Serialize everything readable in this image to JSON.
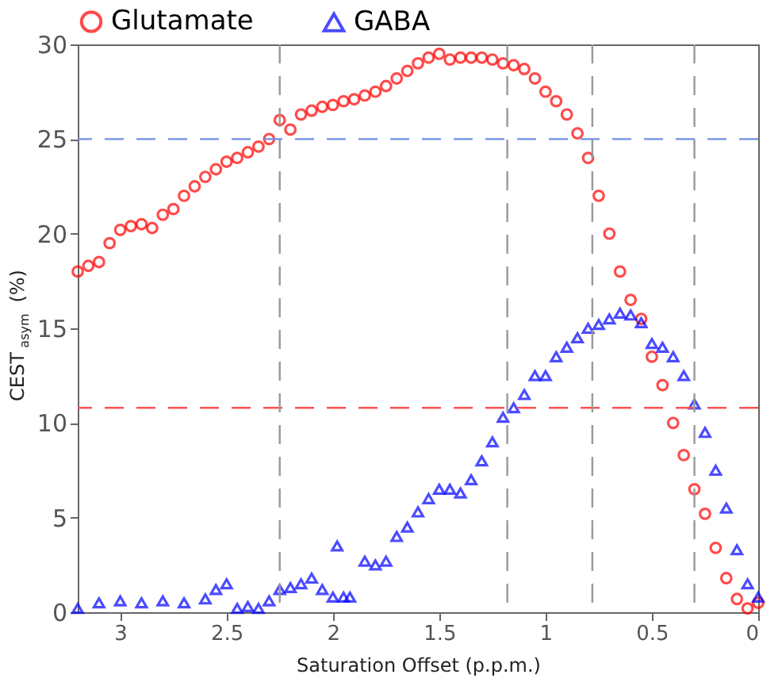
{
  "chart_data": {
    "type": "scatter",
    "xlabel": "Saturation Offset (p.p.m.)",
    "ylabel": "CEST$_{asym}$ (%)",
    "xlim": [
      3.2,
      0
    ],
    "xticks": [
      3,
      2.5,
      2,
      1.5,
      1,
      0.5,
      0
    ],
    "ylim": [
      0,
      30
    ],
    "yticks": [
      0,
      5,
      10,
      15,
      20,
      25,
      30
    ],
    "grid": false,
    "legend": "top",
    "series": [
      {
        "name": "Glutamate",
        "color": "#ff0000",
        "marker": "circle",
        "x": [
          3.2,
          3.15,
          3.1,
          3.05,
          3.0,
          2.95,
          2.9,
          2.85,
          2.8,
          2.75,
          2.7,
          2.65,
          2.6,
          2.55,
          2.5,
          2.45,
          2.4,
          2.35,
          2.3,
          2.25,
          2.2,
          2.15,
          2.1,
          2.05,
          2.0,
          1.95,
          1.9,
          1.85,
          1.8,
          1.75,
          1.7,
          1.65,
          1.6,
          1.55,
          1.5,
          1.45,
          1.4,
          1.35,
          1.3,
          1.25,
          1.2,
          1.15,
          1.1,
          1.05,
          1.0,
          0.95,
          0.9,
          0.85,
          0.8,
          0.75,
          0.7,
          0.65,
          0.6,
          0.55,
          0.5,
          0.45,
          0.4,
          0.35,
          0.3,
          0.25,
          0.2,
          0.15,
          0.1,
          0.05,
          0.0
        ],
        "values": [
          18.0,
          18.3,
          18.5,
          19.5,
          20.2,
          20.4,
          20.5,
          20.3,
          21.0,
          21.3,
          22.0,
          22.5,
          23.0,
          23.4,
          23.8,
          24.0,
          24.3,
          24.6,
          25.0,
          26.0,
          25.5,
          26.3,
          26.5,
          26.7,
          26.8,
          27.0,
          27.1,
          27.3,
          27.5,
          27.8,
          28.2,
          28.6,
          29.0,
          29.3,
          29.5,
          29.2,
          29.3,
          29.3,
          29.3,
          29.2,
          29.0,
          28.9,
          28.7,
          28.2,
          27.5,
          27.0,
          26.3,
          25.3,
          24.0,
          22.0,
          20.0,
          18.0,
          16.5,
          15.5,
          13.5,
          12.0,
          10.0,
          8.3,
          6.5,
          5.2,
          3.4,
          1.8,
          0.7,
          0.2,
          0.5
        ]
      },
      {
        "name": "GABA",
        "color": "#0000ff",
        "marker": "triangle",
        "x": [
          3.2,
          3.1,
          3.0,
          2.9,
          2.8,
          2.7,
          2.6,
          2.55,
          2.5,
          2.45,
          2.4,
          2.35,
          2.3,
          2.25,
          2.2,
          2.15,
          2.1,
          2.05,
          2.0,
          1.98,
          1.95,
          1.92,
          1.85,
          1.8,
          1.75,
          1.7,
          1.65,
          1.6,
          1.55,
          1.5,
          1.45,
          1.4,
          1.35,
          1.3,
          1.25,
          1.2,
          1.15,
          1.1,
          1.05,
          1.0,
          0.95,
          0.9,
          0.85,
          0.8,
          0.75,
          0.7,
          0.65,
          0.6,
          0.55,
          0.5,
          0.45,
          0.4,
          0.35,
          0.3,
          0.25,
          0.2,
          0.15,
          0.1,
          0.05,
          0.0
        ],
        "values": [
          0.2,
          0.5,
          0.6,
          0.5,
          0.6,
          0.5,
          0.7,
          1.2,
          1.5,
          0.2,
          0.3,
          0.2,
          0.6,
          1.2,
          1.3,
          1.5,
          1.8,
          1.2,
          0.8,
          3.5,
          0.8,
          0.8,
          2.7,
          2.5,
          2.7,
          4.0,
          4.5,
          5.3,
          6.0,
          6.5,
          6.5,
          6.3,
          7.0,
          8.0,
          9.0,
          10.3,
          10.8,
          11.5,
          12.5,
          12.5,
          13.5,
          14.0,
          14.5,
          15.0,
          15.2,
          15.5,
          15.8,
          15.7,
          15.3,
          14.2,
          14.0,
          13.5,
          12.5,
          11.0,
          9.5,
          7.5,
          5.5,
          3.3,
          1.5,
          0.8
        ]
      }
    ],
    "ref_lines": [
      {
        "axis": "y",
        "value": 25,
        "color": "#6f8fe8",
        "line_style": "dashed"
      },
      {
        "axis": "y",
        "value": 10.8,
        "color": "#ff5050",
        "line_style": "dashed"
      },
      {
        "axis": "x",
        "value": 2.25,
        "color": "#999999",
        "line_style": "dashed"
      },
      {
        "axis": "x",
        "value": 1.18,
        "color": "#999999",
        "line_style": "dashed"
      },
      {
        "axis": "x",
        "value": 0.78,
        "color": "#999999",
        "line_style": "dashed"
      },
      {
        "axis": "x",
        "value": 0.3,
        "color": "#999999",
        "line_style": "dashed"
      }
    ]
  }
}
